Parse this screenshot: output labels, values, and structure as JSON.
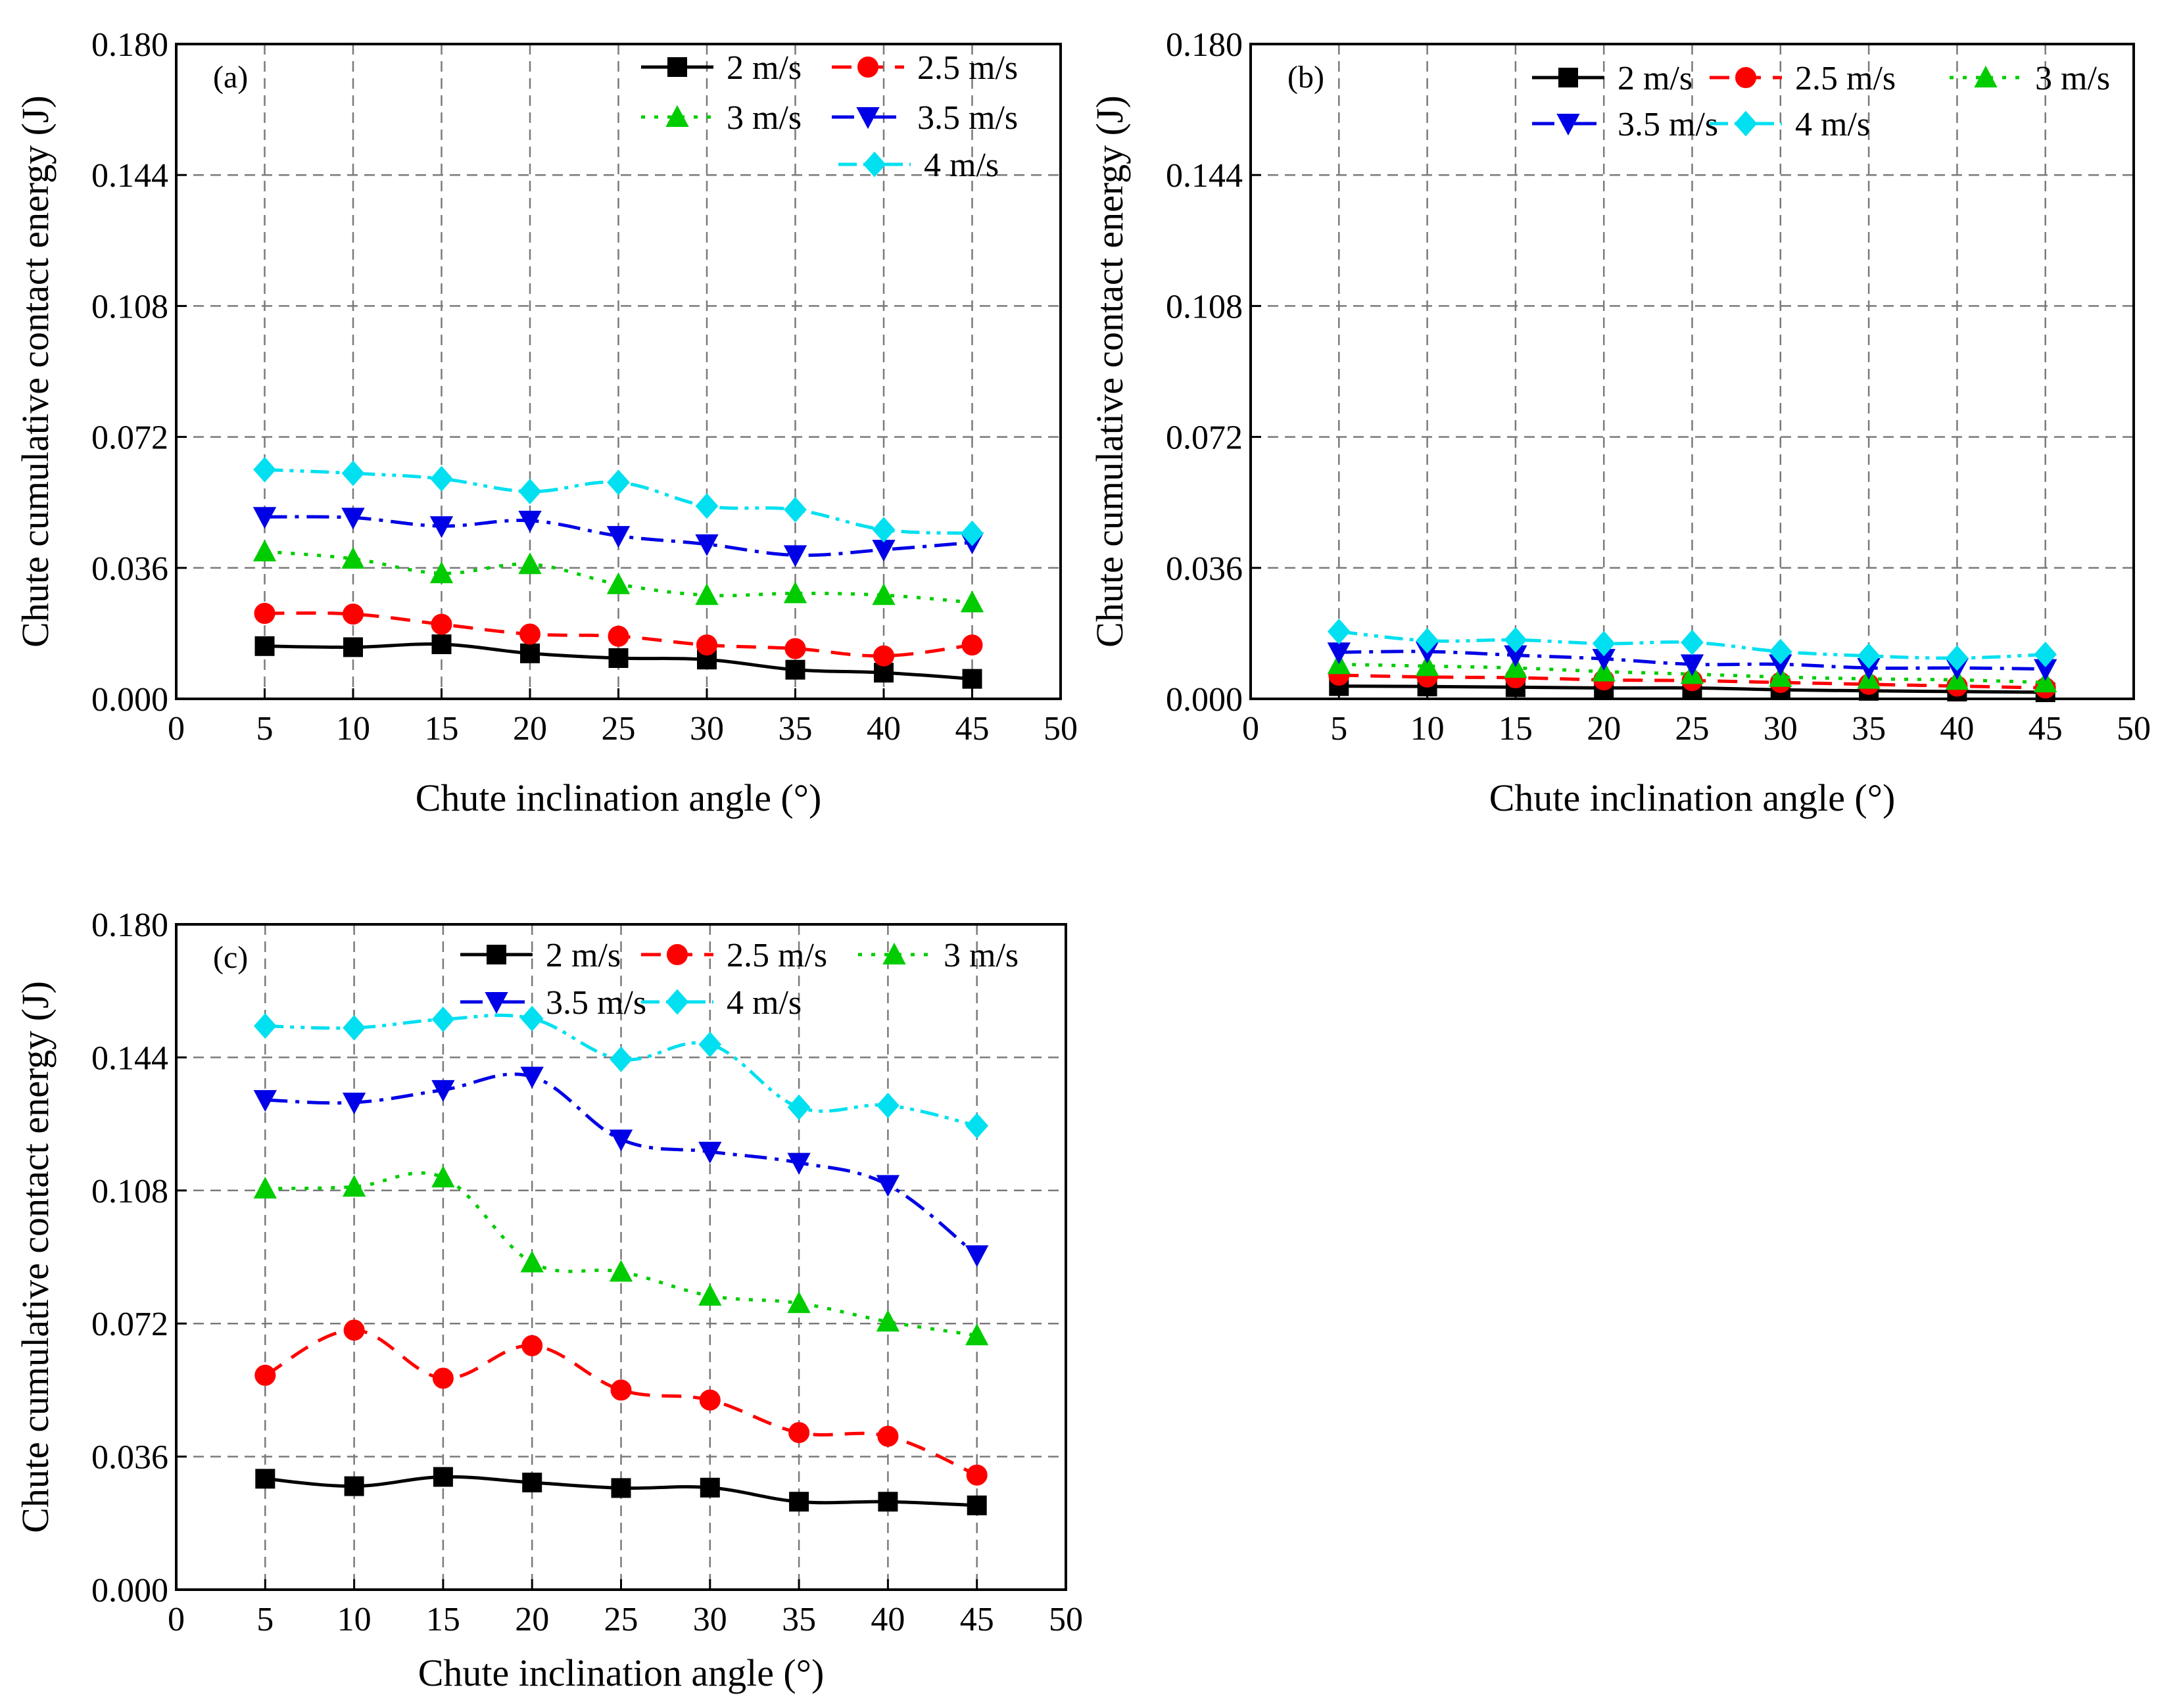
{
  "figure": {
    "colors": {
      "2 m/s": "#000000",
      "2.5 m/s": "#ff0000",
      "3 m/s": "#00cc00",
      "3.5 m/s": "#0000e6",
      "4 m/s": "#00e0f0"
    }
  },
  "chart_data": [
    {
      "type": "line",
      "panel_label": "(a)",
      "xlabel": "Chute inclination angle (°)",
      "ylabel": "Chute cumulative contact energy (J)",
      "xlim": [
        0,
        50
      ],
      "ylim": [
        0,
        0.18
      ],
      "xticks": [
        "0",
        "5",
        "10",
        "15",
        "20",
        "25",
        "30",
        "35",
        "40",
        "45",
        "50"
      ],
      "yticks": [
        "0.000",
        "0.036",
        "0.072",
        "0.108",
        "0.144",
        "0.180"
      ],
      "grid": true,
      "x": [
        5,
        10,
        15,
        20,
        25,
        30,
        35,
        40,
        45
      ],
      "series": [
        {
          "name": "2 m/s",
          "values": [
            0.0145,
            0.0142,
            0.015,
            0.0125,
            0.0112,
            0.0108,
            0.008,
            0.0072,
            0.0055
          ]
        },
        {
          "name": "2.5 m/s",
          "values": [
            0.0235,
            0.0233,
            0.0205,
            0.0178,
            0.0172,
            0.0148,
            0.0138,
            0.0118,
            0.0148
          ]
        },
        {
          "name": "3 m/s",
          "values": [
            0.0405,
            0.0385,
            0.0345,
            0.037,
            0.0315,
            0.0285,
            0.029,
            0.0285,
            0.0265
          ]
        },
        {
          "name": "3.5 m/s",
          "values": [
            0.05,
            0.0498,
            0.0475,
            0.049,
            0.0448,
            0.0425,
            0.0395,
            0.041,
            0.043
          ]
        },
        {
          "name": "4 m/s",
          "values": [
            0.063,
            0.062,
            0.0605,
            0.057,
            0.0595,
            0.053,
            0.052,
            0.0465,
            0.0455
          ]
        }
      ]
    },
    {
      "type": "line",
      "panel_label": "(b)",
      "xlabel": "Chute inclination angle (°)",
      "ylabel": "Chute cumulative contact energy (J)",
      "xlim": [
        0,
        50
      ],
      "ylim": [
        0,
        0.18
      ],
      "xticks": [
        "0",
        "5",
        "10",
        "15",
        "20",
        "25",
        "30",
        "35",
        "40",
        "45",
        "50"
      ],
      "yticks": [
        "0.000",
        "0.036",
        "0.072",
        "0.108",
        "0.144",
        "0.180"
      ],
      "grid": true,
      "x": [
        5,
        10,
        15,
        20,
        25,
        30,
        35,
        40,
        45
      ],
      "series": [
        {
          "name": "2 m/s",
          "values": [
            0.0035,
            0.0034,
            0.0032,
            0.003,
            0.003,
            0.0025,
            0.0022,
            0.002,
            0.0018
          ]
        },
        {
          "name": "2.5 m/s",
          "values": [
            0.0065,
            0.006,
            0.0058,
            0.0052,
            0.005,
            0.0045,
            0.004,
            0.0035,
            0.003
          ]
        },
        {
          "name": "3 m/s",
          "values": [
            0.0095,
            0.009,
            0.0085,
            0.0075,
            0.0068,
            0.006,
            0.0055,
            0.0052,
            0.0045
          ]
        },
        {
          "name": "3.5 m/s",
          "values": [
            0.0128,
            0.013,
            0.012,
            0.011,
            0.0095,
            0.0095,
            0.0085,
            0.0085,
            0.0082
          ]
        },
        {
          "name": "4 m/s",
          "values": [
            0.0185,
            0.016,
            0.0162,
            0.0152,
            0.0155,
            0.013,
            0.0118,
            0.0112,
            0.0122
          ]
        }
      ]
    },
    {
      "type": "line",
      "panel_label": "(c)",
      "xlabel": "Chute inclination angle (°)",
      "ylabel": "Chute cumulative contact energy (J)",
      "xlim": [
        0,
        50
      ],
      "ylim": [
        0,
        0.18
      ],
      "xticks": [
        "0",
        "5",
        "10",
        "15",
        "20",
        "25",
        "30",
        "35",
        "40",
        "45",
        "50"
      ],
      "yticks": [
        "0.000",
        "0.036",
        "0.072",
        "0.108",
        "0.144",
        "0.180"
      ],
      "grid": true,
      "x": [
        5,
        10,
        15,
        20,
        25,
        30,
        35,
        40,
        45
      ],
      "series": [
        {
          "name": "2 m/s",
          "values": [
            0.03,
            0.028,
            0.0305,
            0.029,
            0.0275,
            0.0276,
            0.0238,
            0.0238,
            0.0228
          ]
        },
        {
          "name": "2.5 m/s",
          "values": [
            0.058,
            0.0702,
            0.0572,
            0.066,
            0.054,
            0.0513,
            0.0425,
            0.0415,
            0.031
          ]
        },
        {
          "name": "3 m/s",
          "values": [
            0.1085,
            0.109,
            0.1115,
            0.0885,
            0.086,
            0.0795,
            0.0775,
            0.0725,
            0.0688
          ]
        },
        {
          "name": "3.5 m/s",
          "values": [
            0.1325,
            0.1318,
            0.1352,
            0.1388,
            0.1218,
            0.1185,
            0.1155,
            0.1095,
            0.0905
          ]
        },
        {
          "name": "4 m/s",
          "values": [
            0.1525,
            0.152,
            0.1543,
            0.1545,
            0.1435,
            0.1475,
            0.1305,
            0.131,
            0.1255
          ]
        }
      ]
    }
  ]
}
